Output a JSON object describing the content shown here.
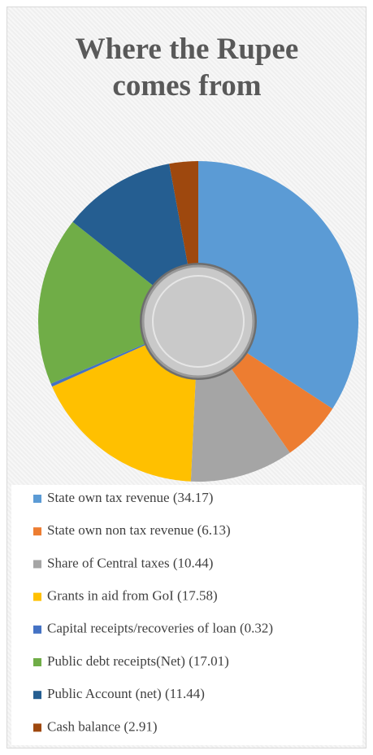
{
  "chart_data": {
    "type": "pie",
    "title": "Where the Rupee comes from",
    "categories": [
      "State own tax revenue (34.17)",
      "State own non tax revenue (6.13)",
      "Share of Central taxes (10.44)",
      "Grants in aid from GoI (17.58)",
      "Capital receipts/recoveries of loan (0.32)",
      "Public debt receipts(Net) (17.01)",
      "Public Account  (net) (11.44)",
      "Cash balance (2.91)"
    ],
    "values": [
      34.17,
      6.13,
      10.44,
      17.58,
      0.32,
      17.01,
      11.44,
      2.91
    ],
    "colors": [
      "#5b9bd5",
      "#ed7d31",
      "#a5a5a5",
      "#ffc000",
      "#4472c4",
      "#70ad47",
      "#255e91",
      "#9e480e"
    ],
    "legend": "bottom"
  }
}
